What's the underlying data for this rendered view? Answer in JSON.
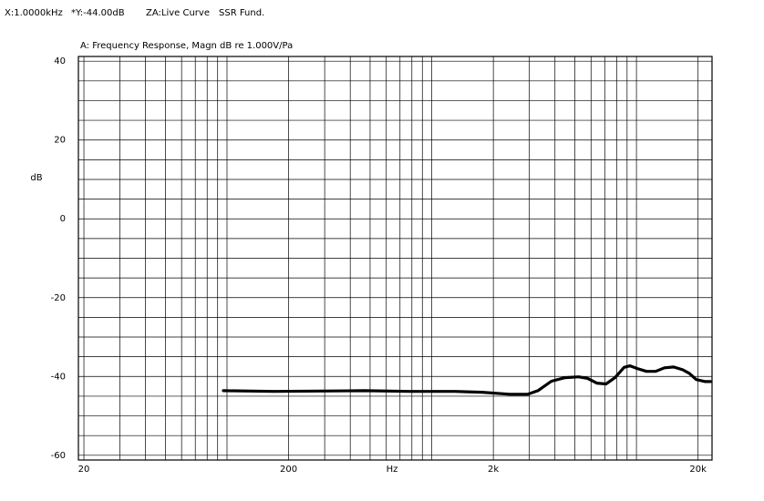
{
  "header": [
    "X:1.0000kHz",
    "*Y:-44.00dB",
    "ZA:Live Curve",
    "SSR Fund."
  ],
  "chart_data": {
    "type": "line",
    "title": "A: Frequency Response, Magn dB re 1.000V/Pa",
    "x_label": "Hz",
    "y_label": "dB",
    "x_scale": "log",
    "grid": true,
    "xlim": [
      18.8,
      23400
    ],
    "xticks": [
      20,
      200,
      {
        "value": 2000,
        "label": "2k"
      },
      {
        "value": 20000,
        "label": "20k"
      }
    ],
    "xminor": [
      30,
      40,
      50,
      60,
      70,
      80,
      90,
      100,
      300,
      400,
      500,
      600,
      700,
      800,
      900,
      1000,
      3000,
      4000,
      5000,
      6000,
      7000,
      8000,
      9000,
      10000
    ],
    "ylim": [
      -61.2,
      41.2
    ],
    "yticks": [
      -60,
      -40,
      -20,
      0,
      20,
      40
    ],
    "yminor": [
      -55,
      -50,
      -45,
      -35,
      -30,
      -25,
      -15,
      -10,
      -5,
      5,
      10,
      15,
      25,
      30,
      35
    ],
    "series": [
      {
        "color": "#000000",
        "x": [
          96,
          170,
          470,
          780,
          1300,
          1760,
          2400,
          2950,
          3300,
          3840,
          4480,
          5220,
          5780,
          6400,
          7100,
          7860,
          8700,
          9300,
          10100,
          11200,
          12400,
          13700,
          15200,
          16800,
          18100,
          19600,
          21700,
          23000
        ],
        "values": [
          -43.6,
          -43.8,
          -43.6,
          -43.8,
          -43.8,
          -44.0,
          -44.5,
          -44.5,
          -43.6,
          -41.2,
          -40.3,
          -40.1,
          -40.5,
          -41.7,
          -41.9,
          -40.3,
          -37.7,
          -37.3,
          -38.0,
          -38.7,
          -38.7,
          -37.8,
          -37.6,
          -38.3,
          -39.2,
          -40.8,
          -41.3,
          -41.3
        ]
      }
    ]
  }
}
